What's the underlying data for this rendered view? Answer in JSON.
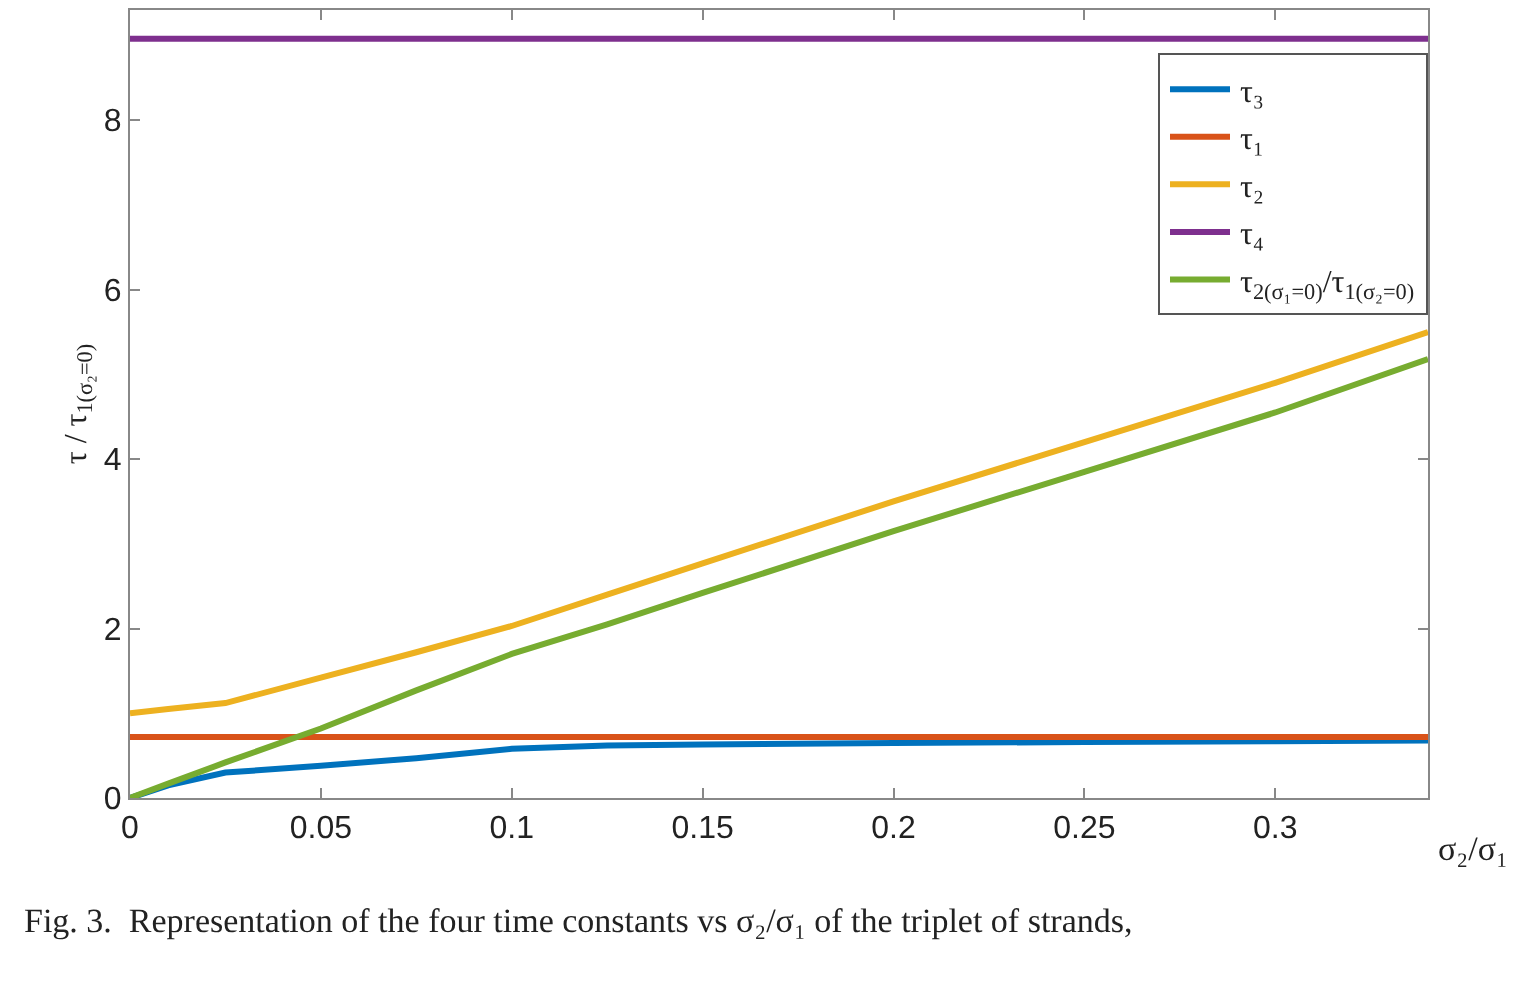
{
  "chart_data": {
    "type": "line",
    "xlabel": "σ₂/σ₁",
    "ylabel": "τ / τ$_{1(σ₂=0)}$",
    "annotations": [
      "Fig. 3.  Representation of the four time constants vs σ₂/σ₁ of the triplet of strands,"
    ],
    "x": [
      0,
      0.01,
      0.025,
      0.05,
      0.075,
      0.1,
      0.125,
      0.15,
      0.2,
      0.25,
      0.3,
      0.34
    ],
    "series": [
      {
        "name": "τ₃",
        "color": "#0072bd",
        "values": [
          0,
          0.15,
          0.3,
          0.38,
          0.47,
          0.58,
          0.62,
          0.63,
          0.65,
          0.66,
          0.67,
          0.68
        ]
      },
      {
        "name": "τ₁",
        "color": "#d95319",
        "values": [
          0.72,
          0.72,
          0.72,
          0.72,
          0.72,
          0.72,
          0.72,
          0.72,
          0.72,
          0.72,
          0.72,
          0.72
        ]
      },
      {
        "name": "τ₂",
        "color": "#edb120",
        "values": [
          1.0,
          1.05,
          1.12,
          1.42,
          1.72,
          2.03,
          2.4,
          2.77,
          3.5,
          4.2,
          4.9,
          5.5
        ]
      },
      {
        "name": "τ₄",
        "color": "#7e2f8e",
        "values": [
          8.96,
          8.96,
          8.96,
          8.96,
          8.96,
          8.96,
          8.96,
          8.96,
          8.96,
          8.96,
          8.96,
          8.96
        ]
      },
      {
        "name": "τ$_{2(σ₁=0)}$/τ$_{1(σ₂=0)}$",
        "color": "#77ac30",
        "values": [
          0,
          0.17,
          0.42,
          0.82,
          1.27,
          1.7,
          2.05,
          2.42,
          3.15,
          3.85,
          4.55,
          5.18
        ]
      }
    ],
    "xlim": [
      0,
      0.34
    ],
    "ylim": [
      0,
      9.3
    ],
    "xticks": [
      0,
      0.05,
      0.1,
      0.15,
      0.2,
      0.25,
      0.3
    ],
    "yticks": [
      0,
      2,
      4,
      6,
      8
    ],
    "grid": false,
    "legend": "top right",
    "marker": "none",
    "line_style": "solid"
  }
}
